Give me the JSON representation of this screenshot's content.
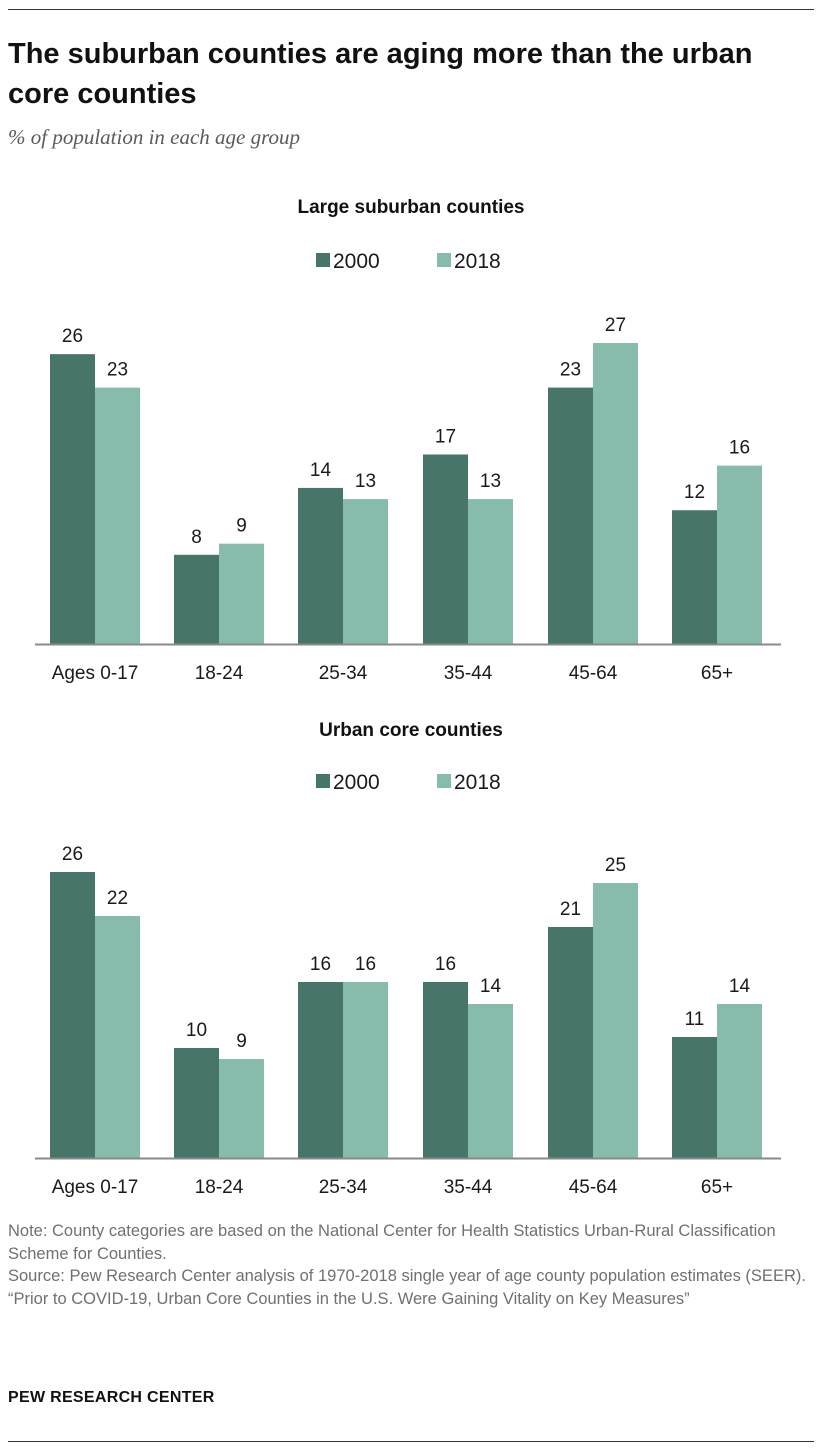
{
  "title": "The suburban counties are aging more than the urban core counties",
  "subtitle": "% of population in each age group",
  "colors": {
    "s2000": "#48756a",
    "s2018": "#87bcac",
    "axis": "#888888"
  },
  "legend": [
    "2000",
    "2018"
  ],
  "chart_data": [
    {
      "type": "bar",
      "title": "Large suburban counties",
      "categories": [
        "Ages 0-17",
        "18-24",
        "25-34",
        "35-44",
        "45-64",
        "65+"
      ],
      "series": [
        {
          "name": "2000",
          "values": [
            26,
            8,
            14,
            17,
            23,
            12
          ]
        },
        {
          "name": "2018",
          "values": [
            23,
            9,
            13,
            13,
            27,
            16
          ]
        }
      ],
      "ylim": [
        0,
        27
      ]
    },
    {
      "type": "bar",
      "title": "Urban core counties",
      "categories": [
        "Ages 0-17",
        "18-24",
        "25-34",
        "35-44",
        "45-64",
        "65+"
      ],
      "series": [
        {
          "name": "2000",
          "values": [
            26,
            10,
            16,
            16,
            21,
            11
          ]
        },
        {
          "name": "2018",
          "values": [
            22,
            9,
            16,
            14,
            25,
            14
          ]
        }
      ],
      "ylim": [
        0,
        25
      ]
    }
  ],
  "notes": {
    "note": "Note: County categories are based on the National Center for Health Statistics Urban-Rural Classification Scheme for Counties.",
    "source": "Source: Pew Research Center analysis of 1970-2018 single year of age county population estimates (SEER).",
    "report": "“Prior to COVID-19, Urban Core Counties in the U.S. Were Gaining Vitality on Key Measures”"
  },
  "brand": "PEW RESEARCH CENTER"
}
